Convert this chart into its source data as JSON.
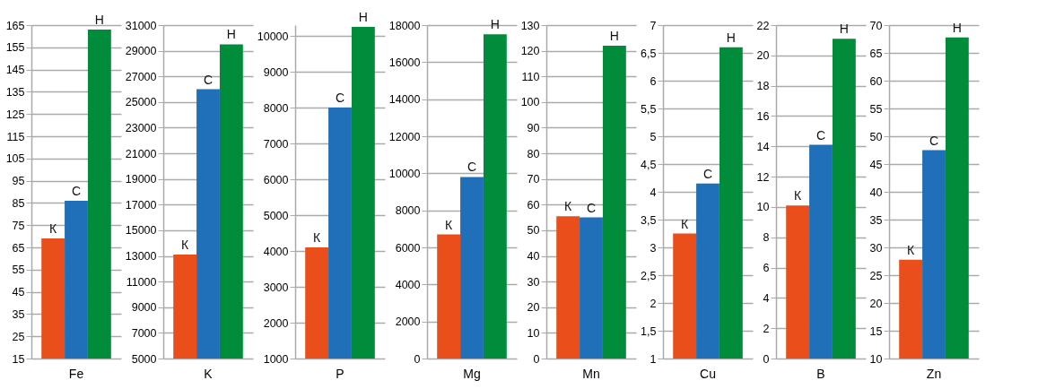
{
  "chart_data": [
    {
      "type": "bar",
      "categories": [
        "Fe"
      ],
      "series": [
        {
          "name": "К",
          "color": "#e94e1b",
          "values": [
            69
          ]
        },
        {
          "name": "С",
          "color": "#1f70b8",
          "values": [
            86
          ]
        },
        {
          "name": "Н",
          "color": "#008c3a",
          "values": [
            163
          ]
        }
      ],
      "ylim": [
        15,
        165
      ],
      "yticks": [
        15,
        25,
        35,
        45,
        55,
        65,
        75,
        85,
        95,
        105,
        115,
        125,
        135,
        145,
        155,
        165
      ],
      "grid": "y"
    },
    {
      "type": "bar",
      "categories": [
        "K"
      ],
      "series": [
        {
          "name": "К",
          "color": "#e94e1b",
          "values": [
            13100
          ]
        },
        {
          "name": "С",
          "color": "#1f70b8",
          "values": [
            26000
          ]
        },
        {
          "name": "Н",
          "color": "#008c3a",
          "values": [
            29500
          ]
        }
      ],
      "ylim": [
        5000,
        31000
      ],
      "yticks": [
        5000,
        7000,
        9000,
        11000,
        13000,
        15000,
        17000,
        19000,
        21000,
        23000,
        25000,
        27000,
        29000,
        31000
      ],
      "grid": "y"
    },
    {
      "type": "bar",
      "categories": [
        "P"
      ],
      "series": [
        {
          "name": "К",
          "color": "#e94e1b",
          "values": [
            4100
          ]
        },
        {
          "name": "С",
          "color": "#1f70b8",
          "values": [
            8000
          ]
        },
        {
          "name": "Н",
          "color": "#008c3a",
          "values": [
            10250
          ]
        }
      ],
      "ylim": [
        1000,
        10300
      ],
      "yticks": [
        1000,
        2000,
        3000,
        4000,
        5000,
        6000,
        7000,
        8000,
        9000,
        10000
      ],
      "grid": "y"
    },
    {
      "type": "bar",
      "categories": [
        "Mg"
      ],
      "series": [
        {
          "name": "К",
          "color": "#e94e1b",
          "values": [
            6700
          ]
        },
        {
          "name": "С",
          "color": "#1f70b8",
          "values": [
            9800
          ]
        },
        {
          "name": "Н",
          "color": "#008c3a",
          "values": [
            17500
          ]
        }
      ],
      "ylim": [
        0,
        18000
      ],
      "yticks": [
        0,
        2000,
        4000,
        6000,
        8000,
        10000,
        12000,
        14000,
        16000,
        18000
      ],
      "grid": "y"
    },
    {
      "type": "bar",
      "categories": [
        "Mn"
      ],
      "series": [
        {
          "name": "К",
          "color": "#e94e1b",
          "values": [
            55.5
          ]
        },
        {
          "name": "С",
          "color": "#1f70b8",
          "values": [
            55
          ]
        },
        {
          "name": "Н",
          "color": "#008c3a",
          "values": [
            122
          ]
        }
      ],
      "ylim": [
        0,
        130
      ],
      "yticks": [
        0,
        10,
        20,
        30,
        40,
        50,
        60,
        70,
        80,
        90,
        100,
        110,
        120,
        130
      ],
      "grid": "y"
    },
    {
      "type": "bar",
      "categories": [
        "Cu"
      ],
      "series": [
        {
          "name": "К",
          "color": "#e94e1b",
          "values": [
            3.25
          ]
        },
        {
          "name": "С",
          "color": "#1f70b8",
          "values": [
            4.15
          ]
        },
        {
          "name": "Н",
          "color": "#008c3a",
          "values": [
            6.6
          ]
        }
      ],
      "ylim": [
        1,
        7
      ],
      "yticks": [
        1,
        {
          "value": 1.5,
          "label": "1,5"
        },
        2,
        {
          "value": 2.5,
          "label": "2,5"
        },
        3,
        {
          "value": 3.5,
          "label": "3,5"
        },
        4,
        {
          "value": 4.5,
          "label": "4,5"
        },
        5,
        {
          "value": 5.5,
          "label": "5,5"
        },
        6,
        {
          "value": 6.5,
          "label": "6,5"
        },
        7
      ],
      "grid": "y"
    },
    {
      "type": "bar",
      "categories": [
        "B"
      ],
      "series": [
        {
          "name": "К",
          "color": "#e94e1b",
          "values": [
            10.1
          ]
        },
        {
          "name": "С",
          "color": "#1f70b8",
          "values": [
            14.1
          ]
        },
        {
          "name": "Н",
          "color": "#008c3a",
          "values": [
            21.1
          ]
        }
      ],
      "ylim": [
        0,
        22
      ],
      "yticks": [
        0,
        2,
        4,
        6,
        8,
        10,
        12,
        14,
        16,
        18,
        20,
        22
      ],
      "grid": "y"
    },
    {
      "type": "bar",
      "categories": [
        "Zn"
      ],
      "series": [
        {
          "name": "К",
          "color": "#e94e1b",
          "values": [
            27.8
          ]
        },
        {
          "name": "С",
          "color": "#1f70b8",
          "values": [
            47.5
          ]
        },
        {
          "name": "Н",
          "color": "#008c3a",
          "values": [
            67.8
          ]
        }
      ],
      "ylim": [
        10,
        70
      ],
      "yticks": [
        10,
        15,
        20,
        25,
        30,
        35,
        40,
        45,
        50,
        55,
        60,
        65,
        70
      ],
      "grid": "y"
    }
  ]
}
